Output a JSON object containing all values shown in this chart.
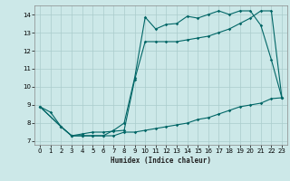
{
  "xlabel": "Humidex (Indice chaleur)",
  "ylabel": "",
  "bg_color": "#cce8e8",
  "grid_color": "#aacccc",
  "line_color": "#006666",
  "xlim": [
    -0.5,
    23.5
  ],
  "ylim": [
    6.8,
    14.5
  ],
  "xticks": [
    0,
    1,
    2,
    3,
    4,
    5,
    6,
    7,
    8,
    9,
    10,
    11,
    12,
    13,
    14,
    15,
    16,
    17,
    18,
    19,
    20,
    21,
    22,
    23
  ],
  "yticks": [
    7,
    8,
    9,
    10,
    11,
    12,
    13,
    14
  ],
  "line1_x": [
    0,
    1,
    2,
    3,
    4,
    5,
    6,
    7,
    8,
    9,
    10,
    11,
    12,
    13,
    14,
    15,
    16,
    17,
    18,
    19,
    20,
    21,
    22,
    23
  ],
  "line1_y": [
    8.9,
    8.6,
    7.8,
    7.3,
    7.3,
    7.3,
    7.3,
    7.6,
    8.0,
    10.5,
    13.85,
    13.2,
    13.45,
    13.5,
    13.9,
    13.8,
    14.0,
    14.2,
    14.0,
    14.2,
    14.2,
    13.4,
    11.5,
    9.4
  ],
  "line2_x": [
    0,
    2,
    3,
    4,
    5,
    6,
    7,
    8,
    9,
    10,
    11,
    12,
    13,
    14,
    15,
    16,
    17,
    18,
    19,
    20,
    21,
    22,
    23
  ],
  "line2_y": [
    8.9,
    7.8,
    7.3,
    7.4,
    7.5,
    7.5,
    7.55,
    7.6,
    10.4,
    12.5,
    12.5,
    12.5,
    12.5,
    12.6,
    12.7,
    12.8,
    13.0,
    13.2,
    13.5,
    13.8,
    14.2,
    14.2,
    9.4
  ],
  "line3_x": [
    0,
    2,
    3,
    4,
    5,
    6,
    7,
    8,
    9,
    10,
    11,
    12,
    13,
    14,
    15,
    16,
    17,
    18,
    19,
    20,
    21,
    22,
    23
  ],
  "line3_y": [
    8.9,
    7.8,
    7.3,
    7.3,
    7.3,
    7.3,
    7.3,
    7.5,
    7.5,
    7.6,
    7.7,
    7.8,
    7.9,
    8.0,
    8.2,
    8.3,
    8.5,
    8.7,
    8.9,
    9.0,
    9.1,
    9.35,
    9.4
  ]
}
